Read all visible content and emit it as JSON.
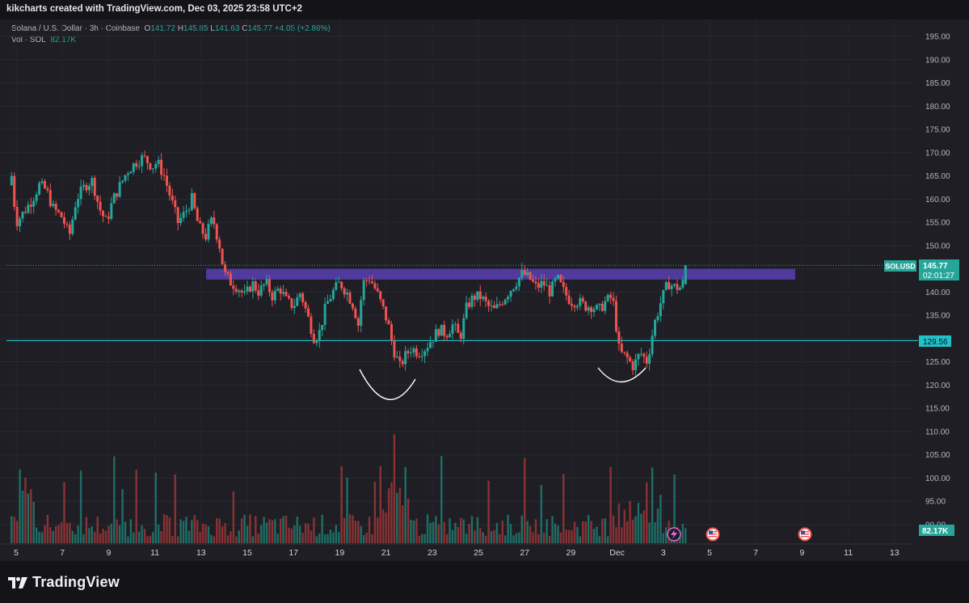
{
  "header": {
    "title": "kikcharts created with TradingView.com, Dec 03, 2025 23:58 UTC+2"
  },
  "legend": {
    "symbol": "Solana / U.S. Dollar · 3h · Coinbase",
    "open_label": "O",
    "open": "141.72",
    "high_label": "H",
    "high": "145.85",
    "low_label": "L",
    "low": "141.63",
    "close_label": "C",
    "close": "145.77",
    "change": "+4.05 (+2.86%)",
    "volume_label": "Vol · SOL",
    "volume": "82.17K"
  },
  "tags": {
    "symbol": "SOLUSD",
    "price": "145.77",
    "countdown": "02:01:27",
    "level": "129.56",
    "volume": "82.17K"
  },
  "branding": {
    "logo_text": "TradingView"
  },
  "colors": {
    "up": "#26a69a",
    "down": "#ef5350",
    "resistance_band": "#5b3fb4",
    "support_line": "#22c1c9",
    "background": "#1e1e24"
  },
  "icons": [
    "tradingview-logo-icon",
    "us-flag-event-icon",
    "lightning-event-icon"
  ],
  "chart_data": {
    "type": "candlestick",
    "title": "Solana / U.S. Dollar · 3h · Coinbase",
    "ylim": [
      90,
      197
    ],
    "y_ticks": [
      "195.00",
      "190.00",
      "185.00",
      "180.00",
      "175.00",
      "170.00",
      "165.00",
      "160.00",
      "155.00",
      "150.00",
      "145.00",
      "140.00",
      "135.00",
      "130.00",
      "125.00",
      "120.00",
      "115.00",
      "110.00",
      "105.00",
      "100.00",
      "95.00",
      "90.00"
    ],
    "x_ticks": [
      "5",
      "7",
      "9",
      "11",
      "13",
      "15",
      "17",
      "19",
      "21",
      "23",
      "25",
      "27",
      "29",
      "Dec",
      "3",
      "5",
      "7",
      "9",
      "11",
      "13"
    ],
    "x_tick_days": [
      5,
      7,
      9,
      11,
      13,
      15,
      17,
      19,
      21,
      23,
      25,
      27,
      29,
      31,
      33,
      35,
      37,
      39,
      41,
      43
    ],
    "resistance_zone": [
      142.7,
      145.0
    ],
    "support_level": 129.56,
    "last_price": 145.77,
    "close_path": [
      [
        4.8,
        165
      ],
      [
        5.0,
        155
      ],
      [
        5.3,
        157
      ],
      [
        5.7,
        160
      ],
      [
        6.0,
        163
      ],
      [
        6.3,
        162
      ],
      [
        6.6,
        158
      ],
      [
        7.0,
        156
      ],
      [
        7.3,
        152
      ],
      [
        7.6,
        160
      ],
      [
        8.0,
        163
      ],
      [
        8.3,
        164
      ],
      [
        8.6,
        158
      ],
      [
        8.9,
        155
      ],
      [
        9.2,
        160
      ],
      [
        9.5,
        163
      ],
      [
        9.8,
        166
      ],
      [
        10.2,
        168
      ],
      [
        10.5,
        169
      ],
      [
        10.9,
        167
      ],
      [
        11.1,
        168
      ],
      [
        11.4,
        165
      ],
      [
        11.7,
        160
      ],
      [
        12.0,
        155
      ],
      [
        12.3,
        157
      ],
      [
        12.6,
        160
      ],
      [
        12.9,
        154
      ],
      [
        13.2,
        152
      ],
      [
        13.5,
        156
      ],
      [
        13.8,
        150
      ],
      [
        14.0,
        144
      ],
      [
        14.3,
        142
      ],
      [
        14.6,
        141
      ],
      [
        14.9,
        139
      ],
      [
        15.2,
        142
      ],
      [
        15.5,
        140
      ],
      [
        15.8,
        142
      ],
      [
        16.1,
        139
      ],
      [
        16.4,
        141
      ],
      [
        16.7,
        138
      ],
      [
        17.0,
        137
      ],
      [
        17.3,
        140
      ],
      [
        17.6,
        135
      ],
      [
        17.9,
        130
      ],
      [
        18.1,
        131
      ],
      [
        18.4,
        137
      ],
      [
        18.7,
        140
      ],
      [
        19.0,
        142
      ],
      [
        19.3,
        140
      ],
      [
        19.6,
        137
      ],
      [
        19.8,
        133
      ],
      [
        20.0,
        142
      ],
      [
        20.3,
        143
      ],
      [
        20.6,
        140
      ],
      [
        20.9,
        136
      ],
      [
        21.1,
        133
      ],
      [
        21.3,
        128
      ],
      [
        21.6,
        124
      ],
      [
        21.8,
        126
      ],
      [
        22.1,
        128
      ],
      [
        22.4,
        127
      ],
      [
        22.7,
        128
      ],
      [
        23.0,
        130
      ],
      [
        23.3,
        132
      ],
      [
        23.6,
        131
      ],
      [
        23.9,
        133
      ],
      [
        24.2,
        130
      ],
      [
        24.5,
        137
      ],
      [
        24.8,
        139
      ],
      [
        25.1,
        139
      ],
      [
        25.4,
        137
      ],
      [
        25.7,
        136
      ],
      [
        26.0,
        138
      ],
      [
        26.3,
        140
      ],
      [
        26.6,
        142
      ],
      [
        26.9,
        144
      ],
      [
        27.2,
        143
      ],
      [
        27.5,
        141
      ],
      [
        27.8,
        142
      ],
      [
        28.1,
        140
      ],
      [
        28.4,
        143
      ],
      [
        28.7,
        140
      ],
      [
        29.0,
        138
      ],
      [
        29.3,
        138
      ],
      [
        29.6,
        137
      ],
      [
        29.9,
        137
      ],
      [
        30.2,
        136
      ],
      [
        30.5,
        138
      ],
      [
        30.8,
        139
      ],
      [
        31.1,
        127
      ],
      [
        31.4,
        126
      ],
      [
        31.7,
        124
      ],
      [
        32.0,
        127
      ],
      [
        32.3,
        125
      ],
      [
        32.6,
        133
      ],
      [
        32.9,
        138
      ],
      [
        33.2,
        142
      ],
      [
        33.5,
        141
      ],
      [
        33.8,
        141
      ],
      [
        34.0,
        145.77
      ]
    ]
  }
}
